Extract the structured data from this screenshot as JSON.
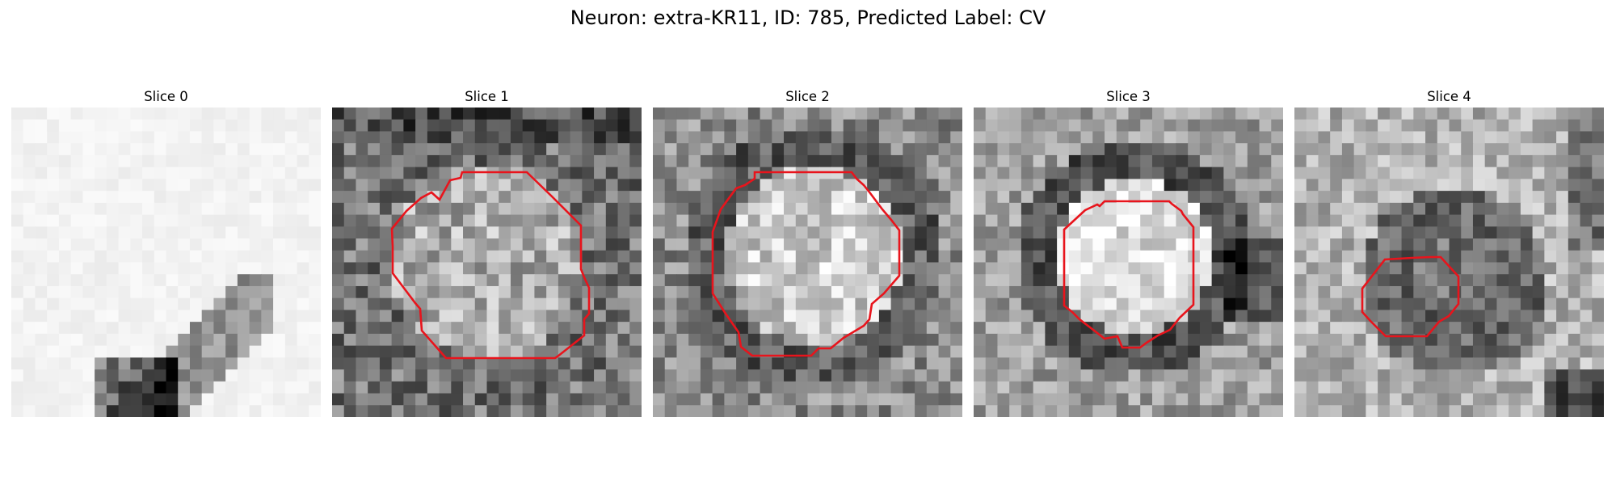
{
  "figure": {
    "title": "Neuron: extra-KR11, ID: 785, Predicted Label: CV",
    "contour_color": "#e8141c"
  },
  "panels": [
    {
      "title": "Slice 0",
      "has_contour": false
    },
    {
      "title": "Slice 1",
      "has_contour": true
    },
    {
      "title": "Slice 2",
      "has_contour": true
    },
    {
      "title": "Slice 3",
      "has_contour": true
    },
    {
      "title": "Slice 4",
      "has_contour": true
    }
  ]
}
